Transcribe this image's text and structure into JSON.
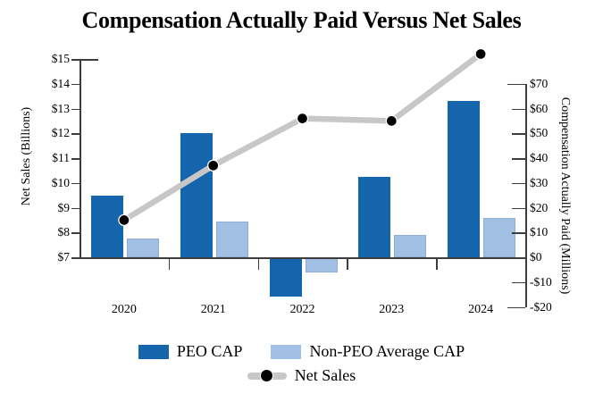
{
  "title": "Compensation Actually Paid Versus Net Sales",
  "left_axis": {
    "title": "Net Sales (Billions)",
    "tick_labels": [
      "$15",
      "$14",
      "$13",
      "$12",
      "$11",
      "$10",
      "$9",
      "$8",
      "$7"
    ]
  },
  "right_axis": {
    "title": "Compensation Actually Paid (Millions)",
    "tick_labels": [
      "$70",
      "$60",
      "$50",
      "$40",
      "$30",
      "$20",
      "$10",
      "$0",
      "-$10",
      "-$20"
    ]
  },
  "x_axis": {
    "tick_labels": [
      "2020",
      "2021",
      "2022",
      "2023",
      "2024"
    ]
  },
  "colors": {
    "peo_cap": "#1565AD",
    "non_peo_cap": "#A2C0E4",
    "net_sales_line": "#C7C7C7",
    "net_sales_marker": "#000000",
    "axis": "#3d3d3d"
  },
  "legend": {
    "items": [
      {
        "label": "PEO CAP",
        "type": "bar",
        "color": "#1565AD"
      },
      {
        "label": "Non-PEO Average CAP",
        "type": "bar",
        "color": "#A2C0E4"
      },
      {
        "label": "Net Sales",
        "type": "line",
        "color": "#C7C7C7",
        "marker_color": "#000000"
      }
    ]
  },
  "chart_data": {
    "type": "combo",
    "title": "Compensation Actually Paid Versus Net Sales",
    "categories": [
      "2020",
      "2021",
      "2022",
      "2023",
      "2024"
    ],
    "bar_series": [
      {
        "name": "PEO CAP",
        "axis": "right",
        "unit": "USD millions",
        "color": "#1565AD",
        "values": [
          25,
          50,
          -16,
          32.5,
          63
        ]
      },
      {
        "name": "Non-PEO Average CAP",
        "axis": "right",
        "unit": "USD millions",
        "color": "#A2C0E4",
        "values": [
          7.5,
          14.5,
          -6,
          9,
          16
        ]
      }
    ],
    "line_series": [
      {
        "name": "Net Sales",
        "axis": "left",
        "unit": "USD billions",
        "color": "#C7C7C7",
        "marker_color": "#000000",
        "values": [
          8.5,
          10.7,
          12.6,
          12.5,
          15.2
        ]
      }
    ],
    "left_ylabel": "Net Sales (Billions)",
    "right_ylabel": "Compensation Actually Paid (Millions)",
    "left_axis_range": [
      7,
      15
    ],
    "left_tick_step": 1,
    "right_axis_range": [
      -20,
      70
    ],
    "right_tick_step": 10,
    "grid": false,
    "legend_position": "bottom"
  }
}
